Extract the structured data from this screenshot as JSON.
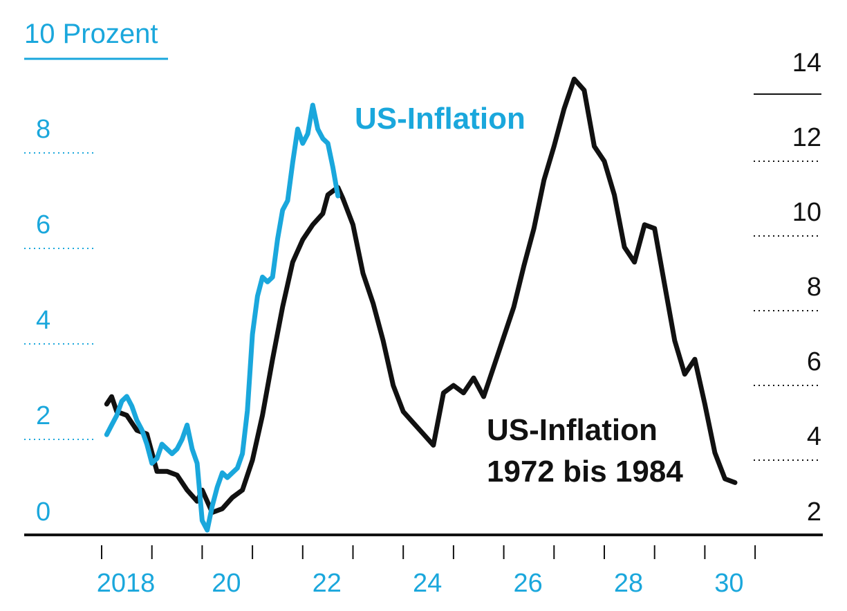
{
  "chart_data": {
    "type": "line",
    "left_axis": {
      "unit_label": "10  Prozent",
      "ticks": [
        0,
        2,
        4,
        6,
        8
      ],
      "range": [
        0,
        10
      ],
      "color": "#1aa7dc"
    },
    "right_axis": {
      "ticks": [
        2,
        4,
        6,
        8,
        10,
        12,
        14
      ],
      "range": [
        2,
        14
      ],
      "color": "#111111"
    },
    "x_axis": {
      "tick_labels": [
        "2018",
        "20",
        "22",
        "24",
        "26",
        "28",
        "30"
      ],
      "label_years": [
        2018,
        2020,
        2022,
        2024,
        2026,
        2028,
        2030
      ],
      "tick_years": [
        2018,
        2019,
        2020,
        2021,
        2022,
        2023,
        2024,
        2025,
        2026,
        2027,
        2028,
        2029,
        2030,
        2031
      ],
      "range": [
        2017.9,
        2031.5
      ]
    },
    "series": [
      {
        "name": "US-Inflation",
        "axis": "left",
        "color": "#1aa7dc",
        "x": [
          2018.1,
          2018.2,
          2018.3,
          2018.4,
          2018.5,
          2018.6,
          2018.7,
          2018.8,
          2018.9,
          2019.0,
          2019.1,
          2019.2,
          2019.3,
          2019.4,
          2019.5,
          2019.6,
          2019.7,
          2019.8,
          2019.9,
          2020.0,
          2020.1,
          2020.2,
          2020.3,
          2020.4,
          2020.5,
          2020.6,
          2020.7,
          2020.8,
          2020.9,
          2021.0,
          2021.1,
          2021.2,
          2021.3,
          2021.4,
          2021.5,
          2021.6,
          2021.7,
          2021.8,
          2021.9,
          2022.0,
          2022.1,
          2022.2,
          2022.3,
          2022.4,
          2022.5,
          2022.6,
          2022.7
        ],
        "y": [
          2.1,
          2.3,
          2.5,
          2.8,
          2.9,
          2.7,
          2.4,
          2.2,
          1.9,
          1.5,
          1.6,
          1.9,
          1.8,
          1.7,
          1.8,
          2.0,
          2.3,
          1.8,
          1.5,
          0.3,
          0.1,
          0.6,
          1.0,
          1.3,
          1.2,
          1.3,
          1.4,
          1.7,
          2.6,
          4.2,
          5.0,
          5.4,
          5.3,
          5.4,
          6.2,
          6.8,
          7.0,
          7.8,
          8.5,
          8.2,
          8.4,
          9.0,
          8.5,
          8.3,
          8.2,
          7.7,
          7.1
        ],
        "label": "US-Inflation"
      },
      {
        "name": "US-Inflation 1972 bis 1984",
        "axis": "right",
        "color": "#111111",
        "x": [
          2018.1,
          2018.2,
          2018.3,
          2018.5,
          2018.7,
          2018.9,
          2019.1,
          2019.3,
          2019.5,
          2019.7,
          2019.9,
          2020.0,
          2020.2,
          2020.4,
          2020.6,
          2020.8,
          2021.0,
          2021.2,
          2021.4,
          2021.6,
          2021.8,
          2022.0,
          2022.2,
          2022.4,
          2022.5,
          2022.6,
          2022.7,
          2022.8,
          2023.0,
          2023.2,
          2023.4,
          2023.6,
          2023.8,
          2024.0,
          2024.2,
          2024.4,
          2024.6,
          2024.8,
          2025.0,
          2025.2,
          2025.4,
          2025.6,
          2025.8,
          2026.0,
          2026.2,
          2026.4,
          2026.6,
          2026.8,
          2027.0,
          2027.2,
          2027.4,
          2027.6,
          2027.8,
          2028.0,
          2028.2,
          2028.4,
          2028.6,
          2028.8,
          2029.0,
          2029.2,
          2029.4,
          2029.6,
          2029.8,
          2030.0,
          2030.2,
          2030.4,
          2030.6
        ],
        "y": [
          5.5,
          5.7,
          5.3,
          5.2,
          4.8,
          4.7,
          3.7,
          3.7,
          3.6,
          3.2,
          2.9,
          3.2,
          2.6,
          2.7,
          3.0,
          3.2,
          4.0,
          5.2,
          6.7,
          8.1,
          9.3,
          9.9,
          10.3,
          10.6,
          11.1,
          11.2,
          11.3,
          11.0,
          10.3,
          9.0,
          8.2,
          7.2,
          6.0,
          5.3,
          5.0,
          4.7,
          4.4,
          5.8,
          6.0,
          5.8,
          6.2,
          5.7,
          6.5,
          7.3,
          8.1,
          9.2,
          10.2,
          11.5,
          12.4,
          13.4,
          14.2,
          13.9,
          12.4,
          12.0,
          11.1,
          9.7,
          9.3,
          10.3,
          10.2,
          8.7,
          7.2,
          6.3,
          6.7,
          5.5,
          4.2,
          3.5,
          3.4
        ],
        "label_lines": [
          "US-Inflation",
          "1972 bis 1984"
        ]
      }
    ]
  }
}
